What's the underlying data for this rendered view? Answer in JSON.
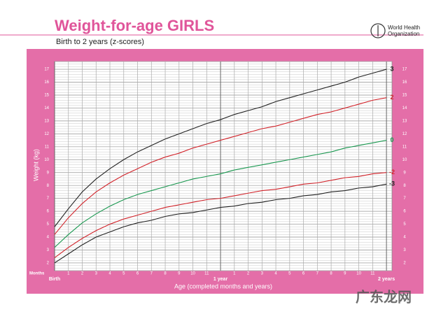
{
  "chart_data": {
    "type": "line",
    "title": "Weight-for-age GIRLS",
    "subtitle": "Birth to 2 years (z-scores)",
    "logo_text": [
      "World Health",
      "Organization"
    ],
    "ylabel": "Weight (kg)",
    "xlabel": "Age (completed months and years)",
    "x_unit_label": "Months",
    "watermark": "广东龙网",
    "x": [
      0,
      1,
      2,
      3,
      4,
      5,
      6,
      7,
      8,
      9,
      10,
      11,
      12,
      13,
      14,
      15,
      16,
      17,
      18,
      19,
      20,
      21,
      22,
      23,
      24
    ],
    "series": [
      {
        "name": "3",
        "color": "#222222",
        "values": [
          4.8,
          6.2,
          7.5,
          8.5,
          9.3,
          10.0,
          10.6,
          11.1,
          11.6,
          12.0,
          12.4,
          12.8,
          13.1,
          13.5,
          13.8,
          14.1,
          14.5,
          14.8,
          15.1,
          15.4,
          15.7,
          16.0,
          16.4,
          16.7,
          17.0
        ]
      },
      {
        "name": "2",
        "color": "#d2232a",
        "values": [
          4.2,
          5.5,
          6.6,
          7.5,
          8.2,
          8.8,
          9.3,
          9.8,
          10.2,
          10.5,
          10.9,
          11.2,
          11.5,
          11.8,
          12.1,
          12.4,
          12.6,
          12.9,
          13.2,
          13.5,
          13.7,
          14.0,
          14.3,
          14.6,
          14.8
        ]
      },
      {
        "name": "0",
        "color": "#1a9850",
        "values": [
          3.2,
          4.2,
          5.1,
          5.8,
          6.4,
          6.9,
          7.3,
          7.6,
          7.9,
          8.2,
          8.5,
          8.7,
          8.9,
          9.2,
          9.4,
          9.6,
          9.8,
          10.0,
          10.2,
          10.4,
          10.6,
          10.9,
          11.1,
          11.3,
          11.5
        ]
      },
      {
        "name": "-2",
        "color": "#d2232a",
        "values": [
          2.4,
          3.2,
          3.9,
          4.5,
          5.0,
          5.4,
          5.7,
          6.0,
          6.3,
          6.5,
          6.7,
          6.9,
          7.0,
          7.2,
          7.4,
          7.6,
          7.7,
          7.9,
          8.1,
          8.2,
          8.4,
          8.6,
          8.7,
          8.9,
          9.0
        ]
      },
      {
        "name": "-3",
        "color": "#222222",
        "values": [
          2.0,
          2.7,
          3.4,
          4.0,
          4.4,
          4.8,
          5.1,
          5.3,
          5.6,
          5.8,
          5.9,
          6.1,
          6.3,
          6.4,
          6.6,
          6.7,
          6.9,
          7.0,
          7.2,
          7.3,
          7.5,
          7.6,
          7.8,
          7.9,
          8.1
        ]
      }
    ],
    "xlim": [
      0,
      24.4
    ],
    "xticks": [
      {
        "value": 0,
        "label": "Birth"
      },
      1,
      2,
      3,
      4,
      5,
      6,
      7,
      8,
      9,
      10,
      11,
      {
        "value": 12,
        "label": "1 year"
      },
      {
        "value": 13,
        "label": "1"
      },
      {
        "value": 14,
        "label": "2"
      },
      {
        "value": 15,
        "label": "3"
      },
      {
        "value": 16,
        "label": "4"
      },
      {
        "value": 17,
        "label": "5"
      },
      {
        "value": 18,
        "label": "6"
      },
      {
        "value": 19,
        "label": "7"
      },
      {
        "value": 20,
        "label": "8"
      },
      {
        "value": 21,
        "label": "9"
      },
      {
        "value": 22,
        "label": "10"
      },
      {
        "value": 23,
        "label": "11"
      },
      {
        "value": 24,
        "label": "2 years"
      }
    ],
    "ylim": [
      1.4,
      17.6
    ],
    "yticks": [
      2,
      3,
      4,
      5,
      6,
      7,
      8,
      9,
      10,
      11,
      12,
      13,
      14,
      15,
      16,
      17
    ],
    "grid": true
  }
}
